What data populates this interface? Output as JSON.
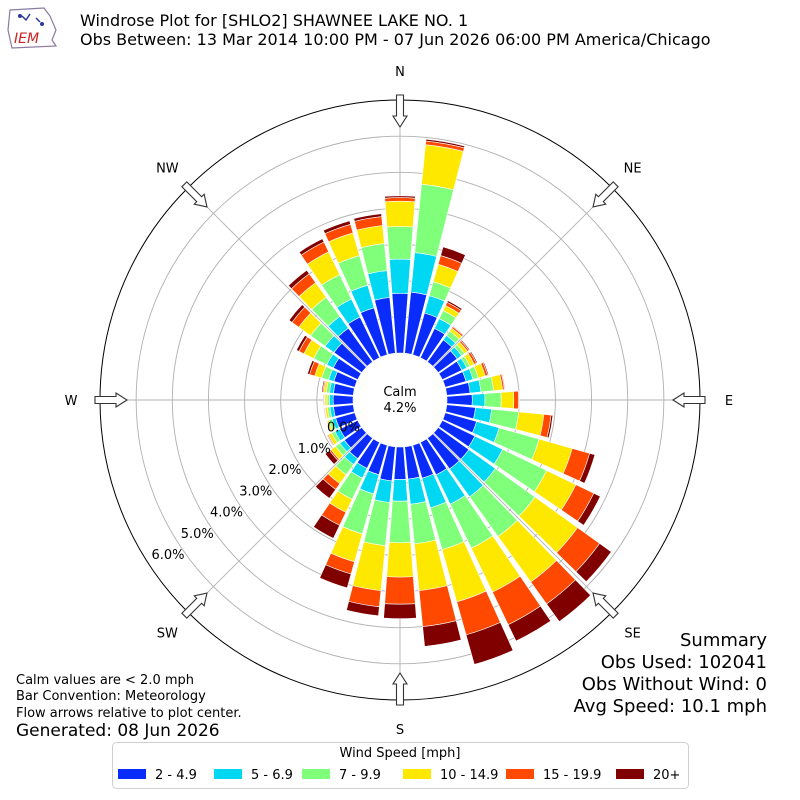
{
  "header": {
    "title_line1": "Windrose Plot for [SHLO2] SHAWNEE LAKE NO. 1",
    "title_line2": "Obs Between: 13 Mar 2014 10:00 PM - 07 Jun 2026 06:00 PM America/Chicago",
    "logo_text": "IEM"
  },
  "summary": {
    "heading": "Summary",
    "obs_used": "Obs Used: 102041",
    "obs_without_wind": "Obs Without Wind: 0",
    "avg_speed": "Avg Speed: 10.1 mph"
  },
  "notes": {
    "calm_note": "Calm values are < 2.0 mph",
    "bar_convention": "Bar Convention: Meteorology",
    "flow_arrows": "Flow arrows relative to plot center.",
    "generated": "Generated: 08 Jun 2026"
  },
  "chart_data": {
    "type": "windrose",
    "calm_label": "Calm",
    "calm_value": "4.2%",
    "rlim": [
      0,
      7.0
    ],
    "radial_ticks": [
      0.0,
      1.0,
      2.0,
      3.0,
      4.0,
      5.0,
      6.0
    ],
    "radial_tick_labels": [
      "0.0%",
      "1.0%",
      "2.0%",
      "3.0%",
      "4.0%",
      "5.0%",
      "6.0%"
    ],
    "compass_labels": [
      "N",
      "NE",
      "E",
      "SE",
      "S",
      "SW",
      "W",
      "NW"
    ],
    "legend_title": "Wind Speed [mph]",
    "speed_bins": [
      {
        "label": "2 - 4.9",
        "color": "#0a2cfb"
      },
      {
        "label": "5 - 6.9",
        "color": "#00d7f2"
      },
      {
        "label": "7 - 9.9",
        "color": "#80ff7a"
      },
      {
        "label": "10 - 14.9",
        "color": "#ffe800"
      },
      {
        "label": "15 - 19.9",
        "color": "#ff4800"
      },
      {
        "label": "20+",
        "color": "#800000"
      }
    ],
    "directions_deg": [
      0,
      10,
      20,
      30,
      40,
      50,
      60,
      70,
      80,
      90,
      100,
      110,
      120,
      130,
      140,
      150,
      160,
      170,
      180,
      190,
      200,
      210,
      220,
      230,
      240,
      250,
      260,
      270,
      280,
      290,
      300,
      310,
      320,
      330,
      340,
      350
    ],
    "cumulative_percent": [
      [
        1.65,
        2.6,
        3.5,
        4.2,
        4.3,
        4.35
      ],
      [
        1.7,
        2.8,
        4.7,
        5.8,
        5.9,
        5.95
      ],
      [
        1.2,
        1.7,
        2.1,
        2.6,
        2.85,
        3.1
      ],
      [
        0.9,
        1.2,
        1.45,
        1.6,
        1.7,
        1.75
      ],
      [
        0.75,
        0.9,
        1.05,
        1.15,
        1.2,
        1.22
      ],
      [
        0.65,
        0.8,
        0.9,
        1.0,
        1.05,
        1.08
      ],
      [
        0.6,
        0.75,
        0.85,
        0.98,
        1.05,
        1.08
      ],
      [
        0.6,
        0.8,
        0.95,
        1.15,
        1.22,
        1.25
      ],
      [
        0.65,
        0.95,
        1.3,
        1.55,
        1.6,
        1.62
      ],
      [
        0.7,
        1.05,
        1.5,
        1.85,
        1.98,
        2.0
      ],
      [
        0.8,
        1.25,
        2.0,
        2.7,
        2.9,
        2.95
      ],
      [
        0.9,
        1.55,
        2.7,
        3.65,
        4.15,
        4.3
      ],
      [
        1.0,
        1.85,
        3.2,
        4.1,
        4.65,
        4.85
      ],
      [
        1.05,
        1.95,
        3.3,
        4.75,
        5.5,
        5.9
      ],
      [
        1.05,
        2.0,
        3.35,
        4.9,
        5.65,
        6.25
      ],
      [
        1.0,
        1.9,
        3.25,
        4.6,
        5.6,
        6.1
      ],
      [
        0.95,
        1.8,
        3.0,
        4.5,
        5.45,
        6.3
      ],
      [
        0.9,
        1.6,
        2.7,
        4.0,
        5.0,
        5.55
      ],
      [
        0.9,
        1.5,
        2.65,
        3.6,
        4.35,
        4.75
      ],
      [
        0.95,
        1.55,
        2.75,
        4.0,
        4.45,
        4.7
      ],
      [
        0.85,
        1.4,
        2.55,
        3.35,
        3.7,
        4.1
      ],
      [
        0.8,
        1.1,
        1.75,
        2.15,
        2.55,
        2.95
      ],
      [
        0.7,
        0.9,
        1.25,
        1.55,
        1.75,
        2.05
      ],
      [
        0.6,
        0.75,
        0.9,
        1.05,
        1.1,
        1.25
      ],
      [
        0.55,
        0.7,
        0.8,
        0.9,
        0.93,
        0.95
      ],
      [
        0.55,
        0.65,
        0.75,
        0.8,
        0.82,
        0.83
      ],
      [
        0.55,
        0.65,
        0.72,
        0.78,
        0.8,
        0.82
      ],
      [
        0.55,
        0.65,
        0.72,
        0.78,
        0.8,
        0.82
      ],
      [
        0.55,
        0.66,
        0.75,
        0.82,
        0.85,
        0.88
      ],
      [
        0.6,
        0.75,
        0.95,
        1.15,
        1.3,
        1.36
      ],
      [
        0.75,
        0.95,
        1.35,
        1.65,
        1.8,
        1.88
      ],
      [
        0.95,
        1.25,
        1.75,
        2.15,
        2.38,
        2.48
      ],
      [
        1.15,
        1.55,
        2.2,
        2.7,
        3.0,
        3.12
      ],
      [
        1.25,
        1.8,
        2.55,
        3.25,
        3.55,
        3.65
      ],
      [
        1.35,
        2.0,
        2.85,
        3.5,
        3.75,
        3.85
      ],
      [
        1.55,
        2.3,
        3.05,
        3.55,
        3.8,
        3.88
      ]
    ]
  }
}
